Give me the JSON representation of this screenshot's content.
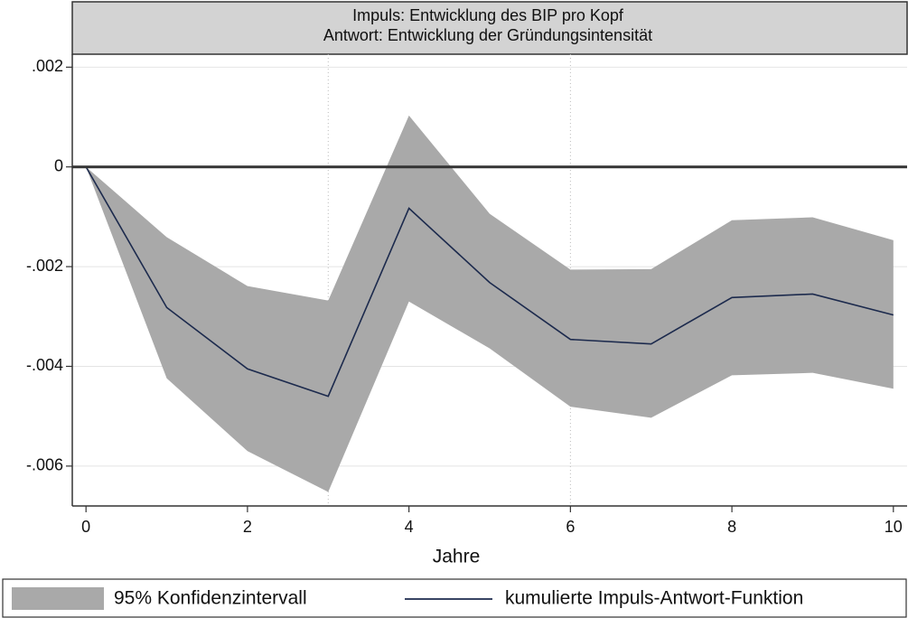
{
  "chart_data": {
    "type": "line",
    "title": "Impuls: Entwicklung des BIP pro Kopf",
    "subtitle": "Antwort: Entwicklung der Gründungsintensität",
    "x_label": "Jahre",
    "x": [
      0,
      1,
      2,
      3,
      4,
      5,
      6,
      7,
      8,
      9,
      10
    ],
    "series": [
      {
        "name": "95% Konfidenzintervall",
        "color": "#a9a9a9",
        "kind": "band",
        "upper": [
          0,
          -0.00141,
          -0.00239,
          -0.00268,
          0.00103,
          -0.00094,
          -0.00206,
          -0.00205,
          -0.00107,
          -0.00101,
          -0.00147
        ],
        "lower": [
          0,
          -0.00424,
          -0.0057,
          -0.00652,
          -0.0027,
          -0.00364,
          -0.00481,
          -0.00503,
          -0.00418,
          -0.00413,
          -0.00445
        ]
      },
      {
        "name": "kumulierte Impuls-Antwort-Funktion",
        "color": "#1c2a4d",
        "kind": "line",
        "values": [
          0,
          -0.00282,
          -0.00405,
          -0.0046,
          -0.00083,
          -0.00232,
          -0.00346,
          -0.00355,
          -0.00262,
          -0.00255,
          -0.00297
        ]
      }
    ],
    "xlim": [
      -0.17,
      10.17
    ],
    "ylim": [
      -0.0068,
      0.00226
    ],
    "xticks": [
      0,
      2,
      4,
      6,
      8,
      10
    ],
    "yticks": [
      {
        "value": 0.002,
        "label": ".002"
      },
      0,
      {
        "value": -0.002,
        "label": "-.002"
      },
      {
        "value": -0.004,
        "label": "-.004"
      },
      {
        "value": -0.006,
        "label": "-.006"
      }
    ],
    "yline": 0,
    "xlines": [
      3,
      6
    ],
    "grid": true,
    "legend": "bottom"
  }
}
